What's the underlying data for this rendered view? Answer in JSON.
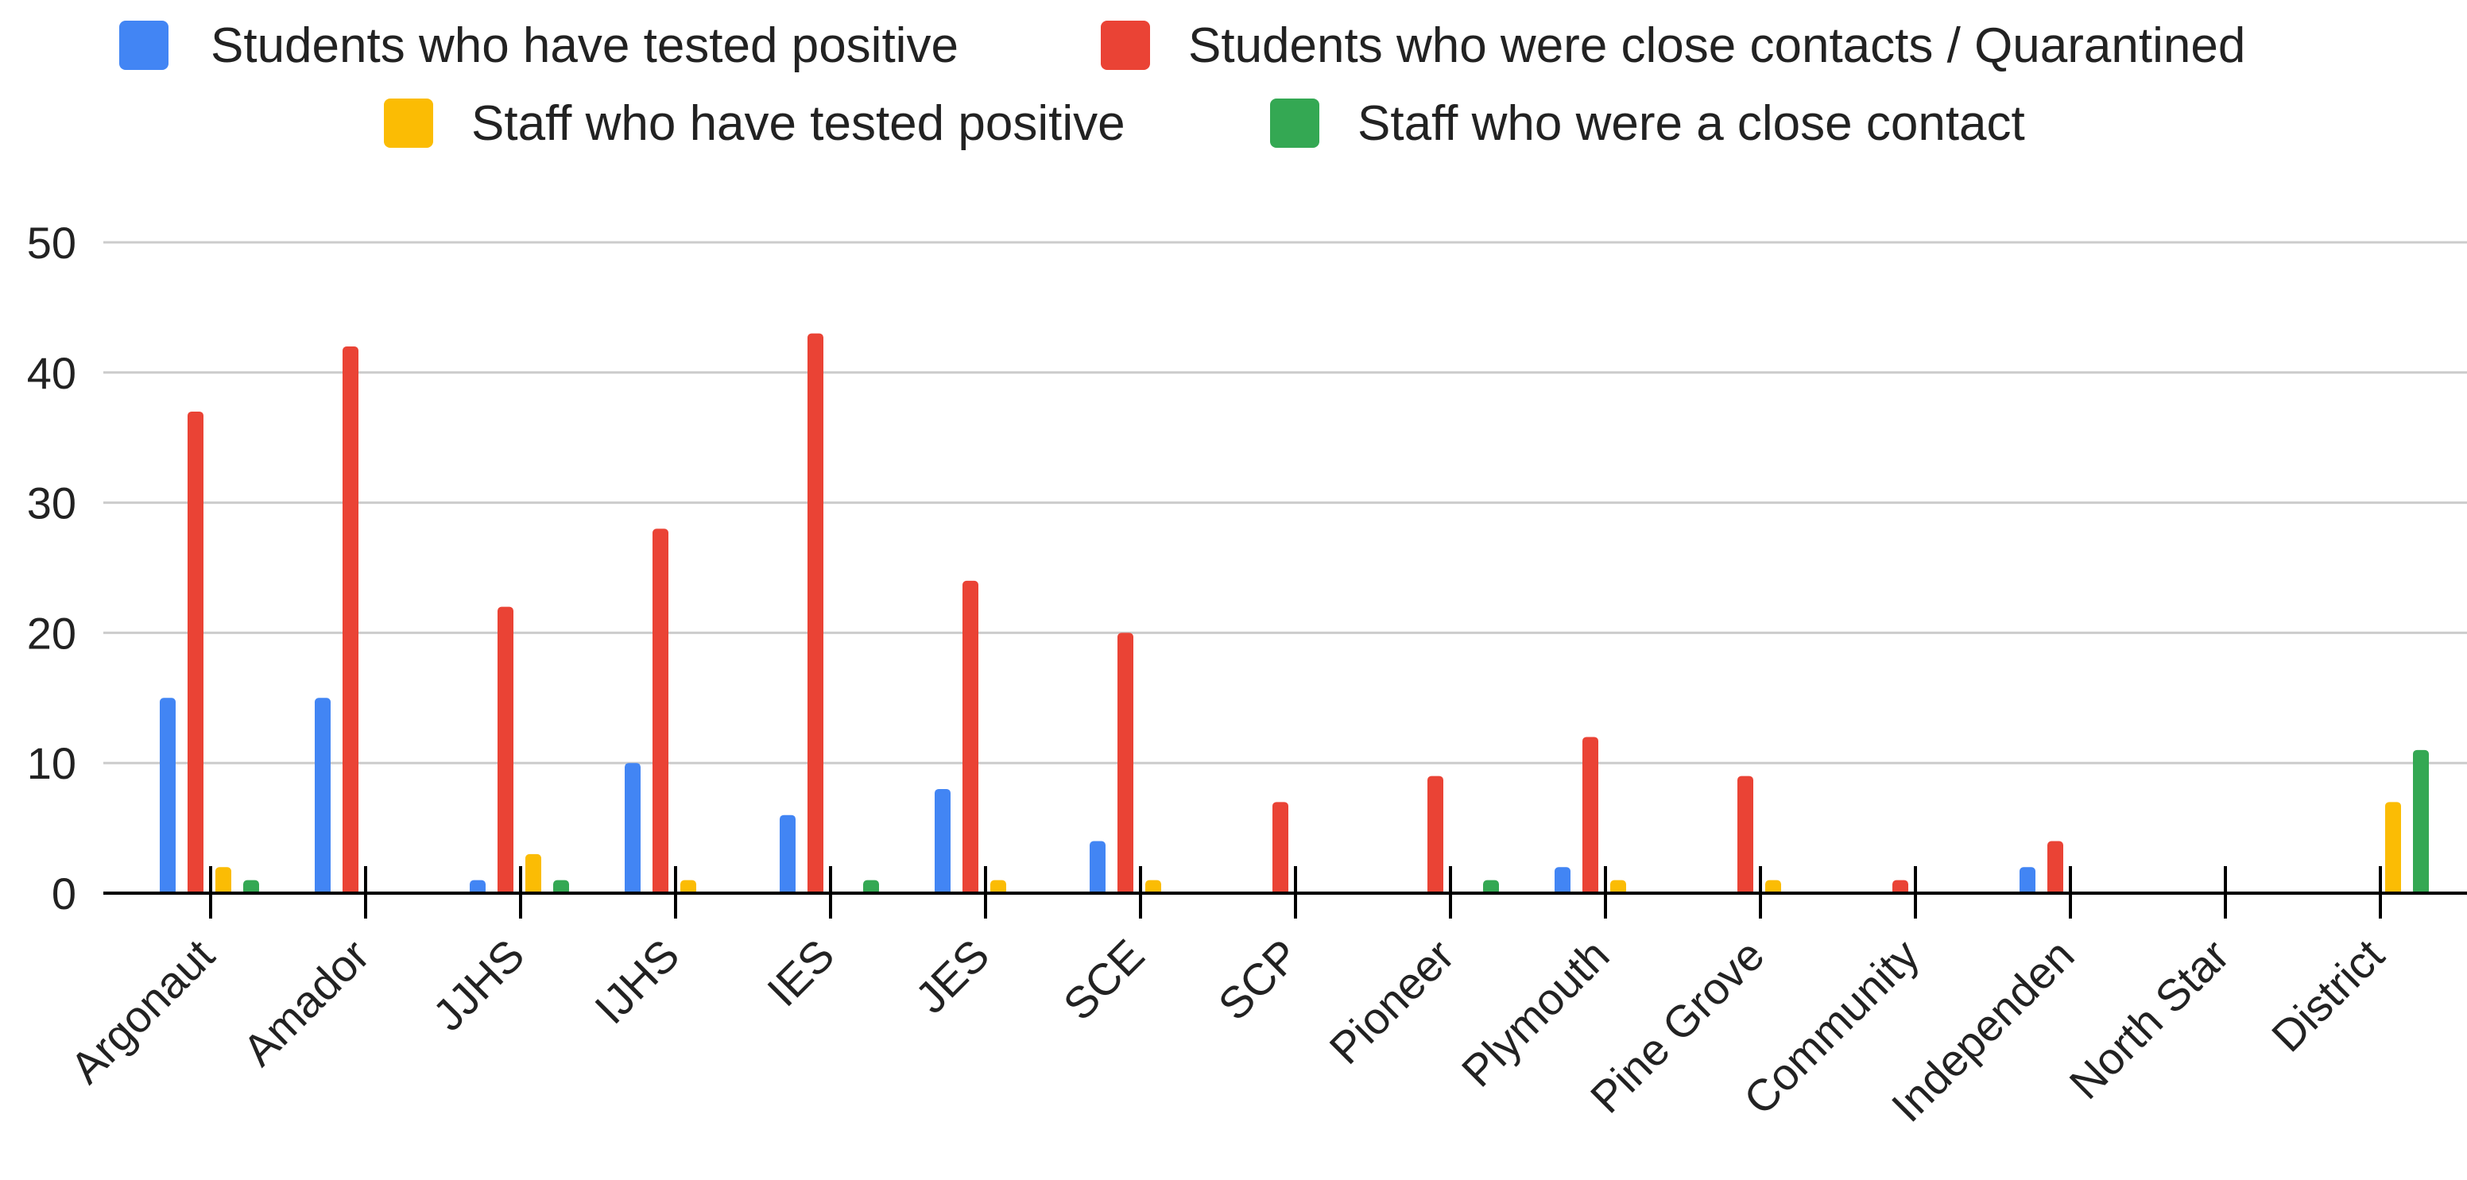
{
  "chart_data": {
    "type": "bar",
    "categories": [
      "Argonaut",
      "Amador",
      "JJHS",
      "IJHS",
      "IES",
      "JES",
      "SCE",
      "SCP",
      "Pioneer",
      "Plymouth",
      "Pine Grove",
      "Community",
      "Independen",
      "North Star",
      "District"
    ],
    "series": [
      {
        "name": "Students who have tested positive",
        "color": "#4285f4",
        "values": [
          15,
          15,
          1,
          10,
          6,
          8,
          4,
          0,
          0,
          2,
          0,
          0,
          2,
          0,
          0
        ]
      },
      {
        "name": "Students who were close contacts / Quarantined",
        "color": "#ea4335",
        "values": [
          37,
          42,
          22,
          28,
          43,
          24,
          20,
          7,
          9,
          12,
          9,
          1,
          4,
          0,
          0
        ]
      },
      {
        "name": "Staff who have tested positive",
        "color": "#fbbc04",
        "values": [
          2,
          0,
          3,
          1,
          0,
          1,
          1,
          0,
          0,
          1,
          1,
          0,
          0,
          0,
          7
        ]
      },
      {
        "name": "Staff who were a close contact",
        "color": "#34a853",
        "values": [
          1,
          0,
          1,
          0,
          1,
          0,
          0,
          0,
          1,
          0,
          0,
          0,
          0,
          0,
          11
        ]
      }
    ],
    "yticks": [
      "0",
      "10",
      "20",
      "30",
      "40",
      "50"
    ],
    "ylim": [
      0,
      50
    ],
    "grid": true,
    "legend_position": "top"
  }
}
